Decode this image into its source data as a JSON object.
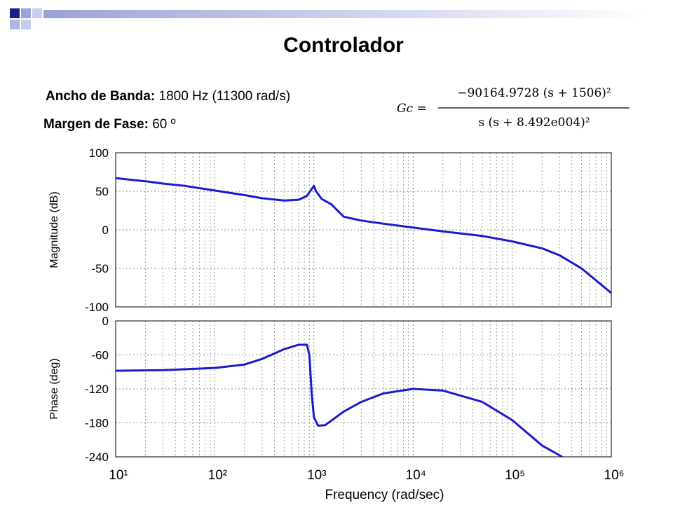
{
  "header": {
    "title": "Controlador"
  },
  "notes": [
    {
      "label": "Ancho de Banda:",
      "text": "1800 Hz  (11300 rad/s)"
    },
    {
      "label": "Margen de Fase:",
      "text": "60 º"
    }
  ],
  "equation": {
    "lhs": "Gc =",
    "numerator": "−90164.9728 (s + 1506)²",
    "denominator": "s (s + 8.492e004)²"
  },
  "chart_data": [
    {
      "type": "line",
      "y_label": "Magnitude (dB)",
      "log_x": true,
      "grid": true,
      "color": "#1a1ad0",
      "x_tick_labels": false,
      "x": [
        10,
        20,
        30,
        50,
        100,
        200,
        300,
        500,
        700,
        850,
        950,
        1000,
        1050,
        1200,
        1500,
        2000,
        3000,
        5000,
        10000,
        20000,
        50000,
        100000,
        200000,
        300000,
        500000,
        1000000
      ],
      "values": [
        67,
        63,
        60,
        57,
        51,
        45,
        41,
        38,
        39,
        44,
        53,
        57,
        50,
        40,
        33,
        17,
        12,
        8,
        3,
        -2,
        -8,
        -15,
        -24,
        -33,
        -50,
        -82
      ],
      "xlim": [
        10,
        1000000
      ],
      "xticks": [
        10,
        100,
        1000,
        10000,
        100000,
        1000000
      ],
      "ylim": [
        -100,
        100
      ],
      "yticks": [
        -100,
        -50,
        0,
        50,
        100
      ]
    },
    {
      "type": "line",
      "y_label": "Phase (deg)",
      "x_label": "Frequency  (rad/sec)",
      "log_x": true,
      "grid": true,
      "color": "#1a1ad0",
      "x_tick_labels": true,
      "x": [
        10,
        30,
        100,
        200,
        300,
        500,
        700,
        850,
        900,
        950,
        1000,
        1100,
        1300,
        2000,
        3000,
        5000,
        10000,
        20000,
        50000,
        100000,
        200000,
        320000
      ],
      "values": [
        -88,
        -87,
        -83,
        -77,
        -67,
        -50,
        -42,
        -42,
        -60,
        -130,
        -170,
        -185,
        -184,
        -160,
        -143,
        -128,
        -120,
        -123,
        -143,
        -175,
        -220,
        -240
      ],
      "xlim": [
        10,
        1000000
      ],
      "xticks": [
        {
          "value": 10,
          "label": "10¹"
        },
        {
          "value": 100,
          "label": "10²"
        },
        {
          "value": 1000,
          "label": "10³"
        },
        {
          "value": 10000,
          "label": "10⁴"
        },
        {
          "value": 100000,
          "label": "10⁵"
        },
        {
          "value": 1000000,
          "label": "10⁶"
        }
      ],
      "ylim": [
        -240,
        0
      ],
      "yticks": [
        -240,
        -180,
        -120,
        -60,
        0
      ]
    }
  ]
}
